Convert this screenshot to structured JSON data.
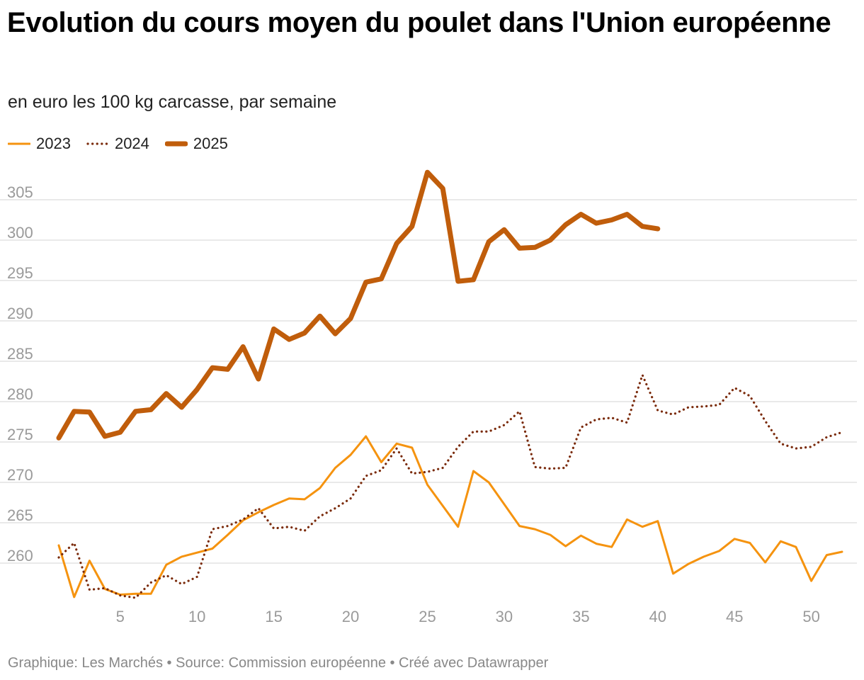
{
  "title": "Evolution du cours moyen du poulet dans l'Union européenne",
  "subtitle": "en euro les 100 kg carcasse, par semaine",
  "footer": "Graphique: Les Marchés • Source: Commission européenne • Créé avec Datawrapper",
  "colors": {
    "s2023": "#f5930f",
    "s2024": "#7a2a0a",
    "s2025": "#c05d0b",
    "grid": "#dcdcdc",
    "tick": "#9a9a9a"
  },
  "chart_data": {
    "type": "line",
    "title": "Evolution du cours moyen du poulet dans l'Union européenne",
    "xlabel": "",
    "ylabel": "",
    "xlim": [
      1,
      52
    ],
    "ylim": [
      255,
      308
    ],
    "xticks": [
      5,
      10,
      15,
      20,
      25,
      30,
      35,
      40,
      45,
      50
    ],
    "yticks": [
      260,
      265,
      270,
      275,
      280,
      285,
      290,
      295,
      300,
      305
    ],
    "legend_position": "top-left",
    "series": [
      {
        "name": "2023",
        "style": "solid-thin",
        "x": [
          1,
          2,
          3,
          4,
          5,
          6,
          7,
          8,
          9,
          10,
          11,
          12,
          13,
          14,
          15,
          16,
          17,
          18,
          19,
          20,
          21,
          22,
          23,
          24,
          25,
          26,
          27,
          28,
          29,
          30,
          31,
          32,
          33,
          34,
          35,
          36,
          37,
          38,
          39,
          40,
          41,
          42,
          43,
          44,
          45,
          46,
          47,
          48,
          49,
          50,
          51,
          52
        ],
        "values": [
          262.2,
          255.8,
          260.3,
          256.8,
          256.1,
          256.2,
          256.2,
          259.8,
          260.8,
          261.3,
          261.8,
          263.5,
          265.3,
          266.3,
          267.2,
          268.0,
          267.9,
          269.3,
          271.8,
          273.4,
          275.7,
          272.5,
          274.8,
          274.3,
          269.7,
          267.1,
          264.5,
          271.4,
          270.0,
          267.3,
          264.6,
          264.2,
          263.5,
          262.1,
          263.4,
          262.4,
          262.0,
          265.4,
          264.5,
          265.2,
          258.7,
          259.9,
          260.8,
          261.5,
          263.0,
          262.5,
          260.1,
          262.7,
          262.0,
          257.8,
          261.0,
          261.4
        ]
      },
      {
        "name": "2024",
        "style": "dotted",
        "x": [
          1,
          2,
          3,
          4,
          5,
          6,
          7,
          8,
          9,
          10,
          11,
          12,
          13,
          14,
          15,
          16,
          17,
          18,
          19,
          20,
          21,
          22,
          23,
          24,
          25,
          26,
          27,
          28,
          29,
          30,
          31,
          32,
          33,
          34,
          35,
          36,
          37,
          38,
          39,
          40,
          41,
          42,
          43,
          44,
          45,
          46,
          47,
          48,
          49,
          50,
          51,
          52
        ],
        "values": [
          260.7,
          262.5,
          256.7,
          256.9,
          256.0,
          255.7,
          257.6,
          258.5,
          257.4,
          258.3,
          264.2,
          264.6,
          265.4,
          266.8,
          264.3,
          264.5,
          264.0,
          265.8,
          266.8,
          268.0,
          270.8,
          271.5,
          274.2,
          271.1,
          271.3,
          271.8,
          274.4,
          276.3,
          276.3,
          277.1,
          278.8,
          271.9,
          271.7,
          271.8,
          276.8,
          277.8,
          278.0,
          277.4,
          283.3,
          278.9,
          278.4,
          279.3,
          279.4,
          279.6,
          281.7,
          280.7,
          277.6,
          274.8,
          274.2,
          274.4,
          275.6,
          276.2
        ]
      },
      {
        "name": "2025",
        "style": "solid-thick",
        "x": [
          1,
          2,
          3,
          4,
          5,
          6,
          7,
          8,
          9,
          10,
          11,
          12,
          13,
          14,
          15,
          16,
          17,
          18,
          19,
          20,
          21,
          22,
          23,
          24,
          25,
          26,
          27,
          28,
          29,
          30,
          31,
          32,
          33,
          34,
          35,
          36,
          37,
          38,
          39,
          40
        ],
        "values": [
          275.5,
          278.8,
          278.7,
          275.7,
          276.2,
          278.8,
          279.0,
          281.0,
          279.3,
          281.5,
          284.2,
          284.0,
          286.8,
          282.8,
          289.0,
          287.7,
          288.5,
          290.6,
          288.4,
          290.3,
          294.8,
          295.2,
          299.6,
          301.7,
          308.4,
          306.4,
          294.9,
          295.1,
          299.8,
          301.3,
          299.0,
          299.1,
          300.0,
          301.9,
          303.2,
          302.1,
          302.5,
          303.2,
          301.7,
          301.4
        ]
      }
    ]
  }
}
